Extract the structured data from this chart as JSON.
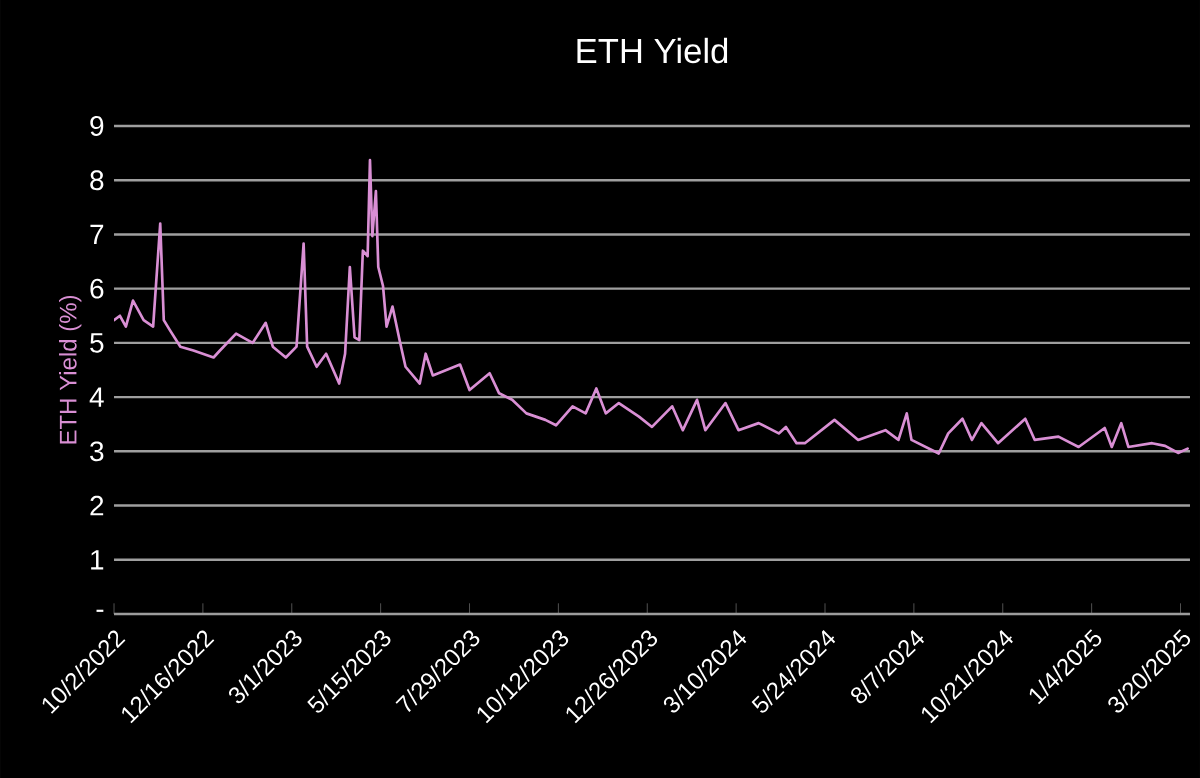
{
  "chart_data": {
    "type": "line",
    "title": "ETH Yield",
    "ylabel": "ETH Yield (%)",
    "x": [
      "2022-10-02",
      "2022-10-07",
      "2022-10-12",
      "2022-10-18",
      "2022-10-27",
      "2022-11-04",
      "2022-11-10",
      "2022-11-13",
      "2022-11-18",
      "2022-11-27",
      "2022-12-08",
      "2022-12-25",
      "2022-12-30",
      "2023-01-13",
      "2023-01-27",
      "2023-02-07",
      "2023-02-13",
      "2023-02-24",
      "2023-03-05",
      "2023-03-11",
      "2023-03-14",
      "2023-03-22",
      "2023-03-30",
      "2023-04-10",
      "2023-04-15",
      "2023-04-19",
      "2023-04-23",
      "2023-04-27",
      "2023-04-30",
      "2023-05-04",
      "2023-05-06",
      "2023-05-08",
      "2023-05-11",
      "2023-05-13",
      "2023-05-17",
      "2023-05-20",
      "2023-05-25",
      "2023-05-31",
      "2023-06-05",
      "2023-06-17",
      "2023-06-22",
      "2023-06-28",
      "2023-07-21",
      "2023-07-29",
      "2023-08-15",
      "2023-08-23",
      "2023-09-03",
      "2023-09-15",
      "2023-10-01",
      "2023-10-10",
      "2023-10-24",
      "2023-11-04",
      "2023-11-13",
      "2023-11-21",
      "2023-12-02",
      "2023-12-19",
      "2023-12-30",
      "2024-01-16",
      "2024-01-25",
      "2024-02-06",
      "2024-02-13",
      "2024-03-01",
      "2024-03-12",
      "2024-03-29",
      "2024-04-15",
      "2024-04-21",
      "2024-04-30",
      "2024-05-07",
      "2024-06-01",
      "2024-06-21",
      "2024-07-14",
      "2024-07-25",
      "2024-08-01",
      "2024-08-05",
      "2024-08-28",
      "2024-09-05",
      "2024-09-17",
      "2024-09-25",
      "2024-10-03",
      "2024-10-17",
      "2024-11-09",
      "2024-11-17",
      "2024-12-07",
      "2024-12-24",
      "2025-01-15",
      "2025-01-21",
      "2025-01-29",
      "2025-02-04",
      "2025-02-24",
      "2025-03-07",
      "2025-03-18",
      "2025-03-26"
    ],
    "values": [
      5.42,
      5.5,
      5.3,
      5.78,
      5.42,
      5.3,
      7.2,
      5.42,
      5.24,
      4.93,
      4.86,
      4.73,
      4.85,
      5.17,
      5.0,
      5.37,
      4.93,
      4.73,
      4.93,
      6.83,
      4.93,
      4.56,
      4.8,
      4.25,
      4.8,
      6.4,
      5.1,
      5.05,
      6.7,
      6.6,
      8.37,
      6.97,
      7.8,
      6.4,
      6.05,
      5.3,
      5.67,
      5.05,
      4.56,
      4.25,
      4.8,
      4.4,
      4.6,
      4.13,
      4.44,
      4.07,
      3.95,
      3.7,
      3.58,
      3.48,
      3.83,
      3.7,
      4.16,
      3.7,
      3.89,
      3.64,
      3.45,
      3.83,
      3.39,
      3.95,
      3.39,
      3.89,
      3.39,
      3.52,
      3.33,
      3.45,
      3.15,
      3.15,
      3.58,
      3.21,
      3.39,
      3.21,
      3.7,
      3.21,
      2.96,
      3.33,
      3.6,
      3.21,
      3.52,
      3.15,
      3.6,
      3.21,
      3.27,
      3.08,
      3.43,
      3.08,
      3.52,
      3.08,
      3.15,
      3.1,
      2.97,
      3.05
    ],
    "color": "#d98fd4",
    "xlim": [
      "2022-10-02",
      "2025-03-28"
    ],
    "xticks": [
      {
        "value": "2022-10-02",
        "label": "10/2/2022"
      },
      {
        "value": "2022-12-16",
        "label": "12/16/2022"
      },
      {
        "value": "2023-03-01",
        "label": "3/1/2023"
      },
      {
        "value": "2023-05-15",
        "label": "5/15/2023"
      },
      {
        "value": "2023-07-29",
        "label": "7/29/2023"
      },
      {
        "value": "2023-10-12",
        "label": "10/12/2023"
      },
      {
        "value": "2023-12-26",
        "label": "12/26/2023"
      },
      {
        "value": "2024-03-10",
        "label": "3/10/2024"
      },
      {
        "value": "2024-05-24",
        "label": "5/24/2024"
      },
      {
        "value": "2024-08-07",
        "label": "8/7/2024"
      },
      {
        "value": "2024-10-21",
        "label": "10/21/2024"
      },
      {
        "value": "2025-01-04",
        "label": "1/4/2025"
      },
      {
        "value": "2025-03-20",
        "label": "3/20/2025"
      }
    ],
    "ylim": [
      0,
      9
    ],
    "yticks": [
      {
        "value": 0,
        "label": "-"
      },
      1,
      2,
      3,
      4,
      5,
      6,
      7,
      8,
      9
    ],
    "grid": "y"
  }
}
